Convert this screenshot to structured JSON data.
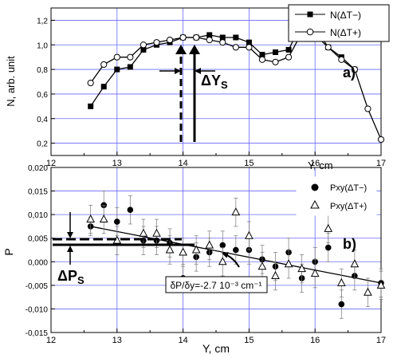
{
  "chart_data": [
    {
      "type": "line",
      "ylabel": "N, arb. unit",
      "xlabel": "Y, cm",
      "panel_label": "a)",
      "xlim": [
        12,
        17
      ],
      "ylim": [
        0.1,
        1.3
      ],
      "x_ticks": [
        "12",
        "13",
        "14",
        "15",
        "16",
        "17"
      ],
      "y_ticks": [
        "0,2",
        "0,4",
        "0,6",
        "0,8",
        "1,0",
        "1,2"
      ],
      "grid": true,
      "legend_position": "top-right",
      "series": [
        {
          "name": "N(ΔT−)",
          "marker": "filled-square",
          "x": [
            12.6,
            12.8,
            13.0,
            13.2,
            13.4,
            13.6,
            13.8,
            14.0,
            14.2,
            14.4,
            14.6,
            14.8,
            15.0,
            15.2,
            15.4,
            15.6,
            15.8,
            16.0,
            16.2,
            16.4,
            16.6
          ],
          "y": [
            0.5,
            0.66,
            0.8,
            0.82,
            0.96,
            1.0,
            1.02,
            1.06,
            1.06,
            1.08,
            1.06,
            1.06,
            1.02,
            0.92,
            0.94,
            0.96,
            1.18,
            1.14,
            0.98,
            0.9,
            0.8
          ]
        },
        {
          "name": "N(ΔT+)",
          "marker": "open-circle",
          "x": [
            12.6,
            12.8,
            13.0,
            13.2,
            13.4,
            13.6,
            13.8,
            14.0,
            14.2,
            14.4,
            14.6,
            14.8,
            15.0,
            15.2,
            15.4,
            15.6,
            15.8,
            16.0,
            16.2,
            16.4,
            16.6,
            16.8,
            17.0
          ],
          "y": [
            0.69,
            0.84,
            0.9,
            0.9,
            1.0,
            1.02,
            1.04,
            1.06,
            1.06,
            1.04,
            1.02,
            0.98,
            0.98,
            0.88,
            0.86,
            0.9,
            1.1,
            1.08,
            0.98,
            0.88,
            0.8,
            0.48,
            0.23
          ]
        }
      ],
      "annotations": {
        "delta_label_main": "ΔY",
        "delta_label_sub": "S"
      }
    },
    {
      "type": "scatter",
      "xlabel": "Y, cm",
      "ylabel": "P",
      "panel_label": "b)",
      "xlim": [
        12,
        17
      ],
      "ylim": [
        -0.015,
        0.02
      ],
      "x_ticks": [
        "12",
        "13",
        "14",
        "15",
        "16",
        "17"
      ],
      "y_ticks": [
        "-0,015",
        "-0,010",
        "-0,005",
        "0,000",
        "0,005",
        "0,010",
        "0,015",
        "0,020"
      ],
      "grid": true,
      "legend_position": "top-right",
      "series": [
        {
          "name": "Pxy(ΔT−)",
          "marker": "filled-circle",
          "x": [
            12.6,
            12.8,
            13.0,
            13.2,
            13.4,
            13.6,
            13.8,
            14.0,
            14.2,
            14.4,
            14.6,
            14.8,
            15.0,
            15.2,
            15.4,
            15.6,
            15.8,
            16.0,
            16.2,
            16.4,
            16.6,
            17.0
          ],
          "y": [
            0.0075,
            0.012,
            0.0085,
            0.011,
            0.0045,
            0.0045,
            0.004,
            -0.0035,
            0.001,
            0.002,
            0.0035,
            0.0025,
            0.0025,
            0.0005,
            -0.001,
            0.002,
            -0.0035,
            0.0,
            0.003,
            -0.009,
            -0.003,
            -0.0045
          ],
          "err": [
            0.002,
            0.003,
            0.003,
            0.003,
            0.003,
            0.003,
            0.003,
            0.003,
            0.003,
            0.003,
            0.003,
            0.003,
            0.003,
            0.003,
            0.003,
            0.003,
            0.003,
            0.003,
            0.003,
            0.003,
            0.003,
            0.003
          ]
        },
        {
          "name": "Pxy(ΔT+)",
          "marker": "open-triangle",
          "x": [
            12.6,
            12.8,
            13.0,
            13.4,
            13.6,
            13.8,
            14.0,
            14.2,
            14.4,
            14.6,
            14.8,
            15.0,
            15.2,
            15.4,
            15.6,
            15.8,
            16.0,
            16.2,
            16.4,
            16.6,
            16.8,
            17.0
          ],
          "y": [
            0.009,
            0.009,
            0.0045,
            0.006,
            0.006,
            0.0025,
            0.002,
            0.0025,
            0.0035,
            0.0,
            0.0105,
            0.0055,
            -0.001,
            -0.003,
            -0.0005,
            -0.0015,
            -0.0025,
            0.007,
            -0.0045,
            -0.0005,
            -0.0065,
            -0.005
          ],
          "err": [
            0.003,
            0.003,
            0.003,
            0.003,
            0.003,
            0.003,
            0.003,
            0.003,
            0.003,
            0.003,
            0.003,
            0.003,
            0.003,
            0.003,
            0.003,
            0.003,
            0.003,
            0.003,
            0.003,
            0.003,
            0.003,
            0.003
          ]
        }
      ],
      "fit_line": {
        "x": [
          12.6,
          17.0
        ],
        "y": [
          0.0075,
          -0.0045
        ]
      },
      "reference_level": 0.0028,
      "annotations": {
        "slope_text": "δP/δy=-2.7 10⁻³ cm⁻¹",
        "delta_label_main": "ΔP",
        "delta_label_sub": "S"
      }
    }
  ],
  "colors": {
    "grid": "#6a6aff",
    "axis": "#000000",
    "background": "#ffffff"
  }
}
